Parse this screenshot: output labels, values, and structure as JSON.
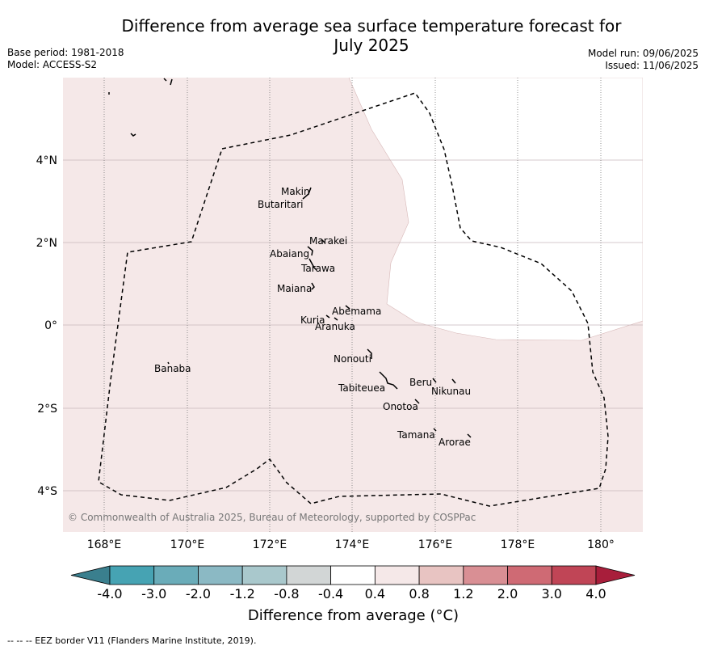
{
  "title_line1": "Difference from average sea surface temperature forecast for",
  "title_line2": "July 2025",
  "base_period": "Base period: 1981-2018",
  "model": "Model: ACCESS-S2",
  "model_run": "Model run: 09/06/2025",
  "issued": "Issued: 11/06/2025",
  "copyright": "© Commonwealth of Australia 2025, Bureau of Meteorology, supported by COSPPac",
  "x_ticks": [
    "168°E",
    "170°E",
    "172°E",
    "174°E",
    "176°E",
    "178°E",
    "180°"
  ],
  "y_ticks": [
    "4°N",
    "2°N",
    "0°",
    "2°S",
    "4°S"
  ],
  "islands": {
    "makin": "Makin",
    "butaritari": "Butaritari",
    "marakei": "Marakei",
    "abaiang": "Abaiang",
    "tarawa": "Tarawa",
    "maiana": "Maiana",
    "abemama": "Abemama",
    "kuria": "Kuria",
    "aranuka": "Aranuka",
    "nonouti": "Nonouti",
    "banaba": "Banaba",
    "beru": "Beru",
    "nikunau": "Nikunau",
    "tabiteuea": "Tabiteuea",
    "onotoa": "Onotoa",
    "tamana": "Tamana",
    "arorae": "Arorae"
  },
  "colorbar": {
    "labels": [
      "-4.0",
      "-3.0",
      "-2.0",
      "-1.2",
      "-0.8",
      "-0.4",
      "0.4",
      "0.8",
      "1.2",
      "2.0",
      "3.0",
      "4.0"
    ],
    "colors": [
      "#3a7f8e",
      "#46a3b3",
      "#6aacb9",
      "#8bb9c4",
      "#a9c8cc",
      "#d2d6d6",
      "#ffffff",
      "#f5e8e8",
      "#e8c4c2",
      "#d98f94",
      "#cf6a74",
      "#c04556",
      "#a81e3b"
    ],
    "title": "Difference from average (°C)"
  },
  "colors": {
    "anomaly_fill": "#f5e8e8",
    "grid": "#c9b8bb",
    "eez_border": "#000000"
  },
  "footer": "--  --  -- EEZ border V11 (Flanders Marine Institute, 2019)."
}
